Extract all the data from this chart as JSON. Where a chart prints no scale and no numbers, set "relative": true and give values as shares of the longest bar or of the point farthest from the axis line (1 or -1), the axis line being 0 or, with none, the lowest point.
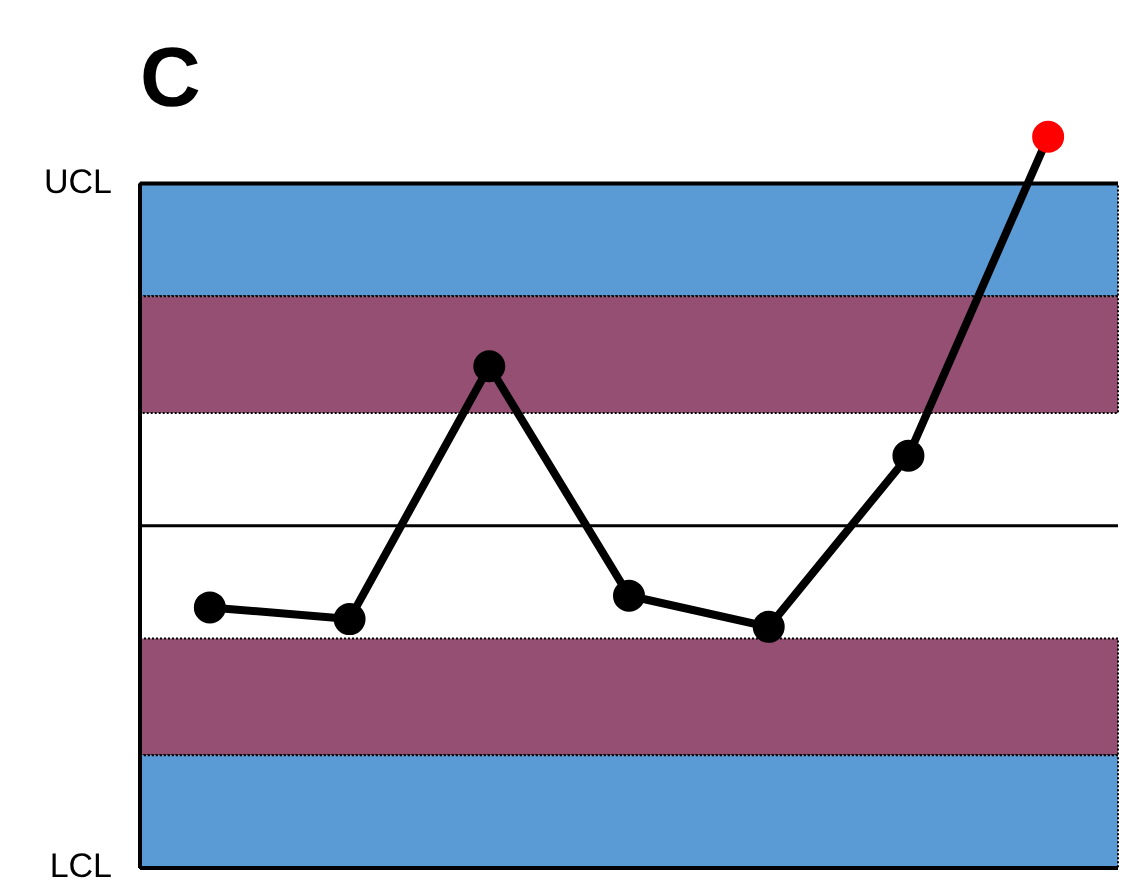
{
  "chart_data": {
    "type": "line",
    "title": "C",
    "relative": true,
    "categories": [
      null,
      null,
      null,
      null,
      null,
      null,
      null
    ],
    "values": [
      -0.21,
      -0.24,
      0.41,
      -0.18,
      -0.26,
      0.18,
      1
    ],
    "color": "#000000",
    "colors": [
      "#000000",
      "#000000",
      "#000000",
      "#000000",
      "#000000",
      "#000000",
      "#ff0000"
    ],
    "marker": "circle",
    "line_style": "solid",
    "legend": false,
    "bands": [
      {
        "axis": "y",
        "from": 0.59,
        "to": 0.88,
        "color": "#5b9bd5"
      },
      {
        "axis": "y",
        "from": 0.29,
        "to": 0.59,
        "color": "#954f72"
      },
      {
        "axis": "y",
        "from": -0.59,
        "to": -0.29,
        "color": "#954f72"
      },
      {
        "axis": "y",
        "from": -0.88,
        "to": -0.59,
        "color": "#5b9bd5"
      }
    ],
    "ref_lines": [
      {
        "axis": "y",
        "value": 0,
        "color": "#000000"
      },
      {
        "axis": "y",
        "value": 0.88,
        "label": "UCL",
        "color": "#000000"
      },
      {
        "axis": "y",
        "value": -0.88,
        "label": "LCL",
        "color": "#000000"
      }
    ]
  }
}
